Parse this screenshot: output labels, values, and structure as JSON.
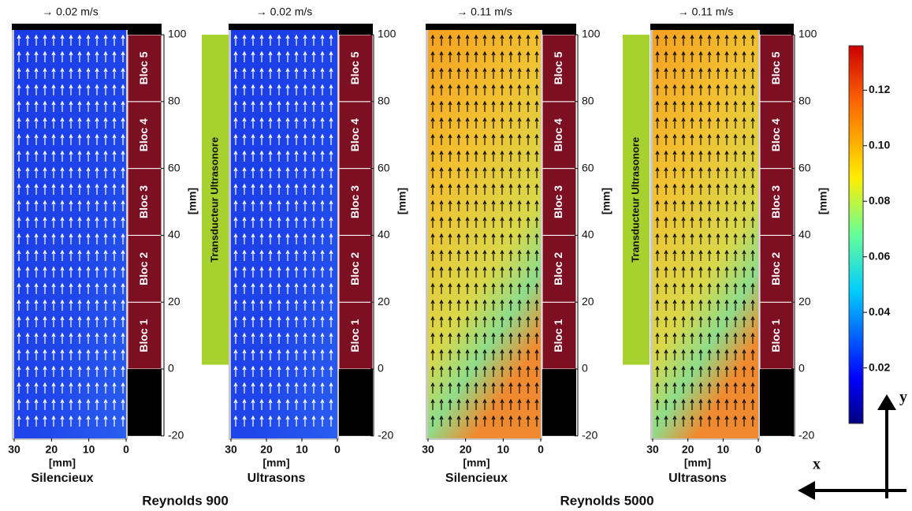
{
  "panels": [
    {
      "scale_label": "→ 0.02 m/s",
      "x_ticks": [
        30,
        20,
        10,
        0
      ],
      "x_label": "[mm]",
      "caption": "Silencieux",
      "y_ticks": [
        100,
        80,
        60,
        40,
        20,
        0,
        -20
      ],
      "y_label": "[mm]",
      "blocs": [
        "Bloc 1",
        "Bloc 2",
        "Bloc 3",
        "Bloc 4",
        "Bloc 5"
      ]
    },
    {
      "scale_label": "→ 0.02 m/s",
      "x_ticks": [
        30,
        20,
        10,
        0
      ],
      "x_label": "[mm]",
      "caption": "Ultrasons",
      "y_ticks": [
        100,
        80,
        60,
        40,
        20,
        0,
        -20
      ],
      "y_label": "[mm]",
      "blocs": [
        "Bloc 1",
        "Bloc 2",
        "Bloc 3",
        "Bloc 4",
        "Bloc 5"
      ],
      "transducer": "Transducteur Ultrasonore"
    },
    {
      "scale_label": "→ 0.11 m/s",
      "x_ticks": [
        30,
        20,
        10,
        0
      ],
      "x_label": "[mm]",
      "caption": "Silencieux",
      "y_ticks": [
        100,
        80,
        60,
        40,
        20,
        0,
        -20
      ],
      "y_label": "[mm]",
      "blocs": [
        "Bloc 1",
        "Bloc 2",
        "Bloc 3",
        "Bloc 4",
        "Bloc 5"
      ]
    },
    {
      "scale_label": "→ 0.11 m/s",
      "x_ticks": [
        30,
        20,
        10,
        0
      ],
      "x_label": "[mm]",
      "caption": "Ultrasons",
      "y_ticks": [
        100,
        80,
        60,
        40,
        20,
        0,
        -20
      ],
      "y_label": "[mm]",
      "blocs": [
        "Bloc 1",
        "Bloc 2",
        "Bloc 3",
        "Bloc 4",
        "Bloc 5"
      ],
      "transducer": "Transducteur Ultrasonore"
    }
  ],
  "groups": [
    "Reynolds 900",
    "Reynolds 5000"
  ],
  "colorbar": {
    "range": [
      0,
      0.136
    ],
    "ticks": [
      {
        "value": 0.12,
        "label": "0.12"
      },
      {
        "value": 0.1,
        "label": "0.10"
      },
      {
        "value": 0.08,
        "label": "0.08"
      },
      {
        "value": 0.06,
        "label": "0.06"
      },
      {
        "value": 0.04,
        "label": "0.04"
      },
      {
        "value": 0.02,
        "label": "0.02"
      }
    ]
  },
  "axes": {
    "x": "x",
    "y": "y"
  }
}
